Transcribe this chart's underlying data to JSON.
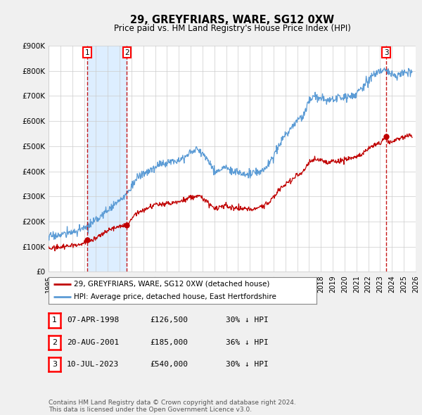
{
  "title": "29, GREYFRIARS, WARE, SG12 0XW",
  "subtitle": "Price paid vs. HM Land Registry's House Price Index (HPI)",
  "ylabel_max": 900000,
  "yticks": [
    0,
    100000,
    200000,
    300000,
    400000,
    500000,
    600000,
    700000,
    800000,
    900000
  ],
  "ytick_labels": [
    "£0",
    "£100K",
    "£200K",
    "£300K",
    "£400K",
    "£500K",
    "£600K",
    "£700K",
    "£800K",
    "£900K"
  ],
  "xmin_year": 1995.0,
  "xmax_year": 2026.0,
  "xtick_years": [
    1995,
    1996,
    1997,
    1998,
    1999,
    2000,
    2001,
    2002,
    2003,
    2004,
    2005,
    2006,
    2007,
    2008,
    2009,
    2010,
    2011,
    2012,
    2013,
    2014,
    2015,
    2016,
    2017,
    2018,
    2019,
    2020,
    2021,
    2022,
    2023,
    2024,
    2025,
    2026
  ],
  "hpi_color": "#5b9bd5",
  "price_color": "#c00000",
  "vline_color": "#c00000",
  "shade_color": "#ddeeff",
  "hatch_color": "#cccccc",
  "sale_events": [
    {
      "year": 1998.27,
      "price": 126500,
      "label": "1"
    },
    {
      "year": 2001.62,
      "price": 185000,
      "label": "2"
    },
    {
      "year": 2023.52,
      "price": 540000,
      "label": "3"
    }
  ],
  "legend_entries": [
    {
      "label": "29, GREYFRIARS, WARE, SG12 0XW (detached house)",
      "color": "#c00000"
    },
    {
      "label": "HPI: Average price, detached house, East Hertfordshire",
      "color": "#5b9bd5"
    }
  ],
  "table_rows": [
    {
      "num": "1",
      "date": "07-APR-1998",
      "price": "£126,500",
      "hpi": "30% ↓ HPI"
    },
    {
      "num": "2",
      "date": "20-AUG-2001",
      "price": "£185,000",
      "hpi": "36% ↓ HPI"
    },
    {
      "num": "3",
      "date": "10-JUL-2023",
      "price": "£540,000",
      "hpi": "30% ↓ HPI"
    }
  ],
  "footnote": "Contains HM Land Registry data © Crown copyright and database right 2024.\nThis data is licensed under the Open Government Licence v3.0.",
  "background_color": "#f0f0f0",
  "plot_bg_color": "#ffffff",
  "grid_color": "#cccccc"
}
